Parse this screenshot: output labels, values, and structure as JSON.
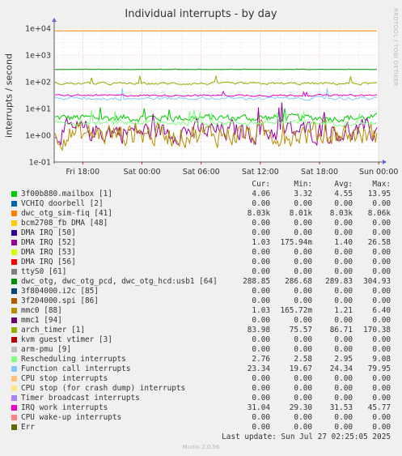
{
  "title": "Individual interrupts - by day",
  "watermark": "RRDTOOL / TOBI OETIKER",
  "footer": {
    "last_update": "Last update: Sun Jul 27 02:25:05 2025",
    "version": "Munin 2.0.56"
  },
  "legend_headers": [
    "Cur:",
    "Min:",
    "Avg:",
    "Max:"
  ],
  "chart_data": {
    "type": "line",
    "title": "Individual interrupts - by day",
    "ylabel": "interrupts / second",
    "yscale": "log",
    "ylim": [
      0.1,
      10000
    ],
    "y_ticks": [
      "1e-01",
      "1e+00",
      "1e+01",
      "1e+02",
      "1e+03",
      "1e+04"
    ],
    "x_ticks": [
      "Fri 18:00",
      "Sat 00:00",
      "Sat 06:00",
      "Sat 12:00",
      "Sat 18:00",
      "Sun 00:00"
    ],
    "x_range_hours": [
      -2.9,
      29.9
    ],
    "x_tick_hours": [
      0,
      6,
      12,
      18,
      24,
      30
    ],
    "grid": true,
    "series": [
      {
        "name": "3f00b880.mailbox [1]",
        "color": "#00cc00",
        "cur": "4.06",
        "min": "3.32",
        "avg": "4.55",
        "max": "13.95",
        "level": 4.5,
        "noise": 0.12,
        "spike": 2.4
      },
      {
        "name": "VCHIQ doorbell [2]",
        "color": "#0066b3",
        "cur": "0.00",
        "min": "0.00",
        "avg": "0.00",
        "max": "0.00"
      },
      {
        "name": "dwc_otg_sim-fiq [41]",
        "color": "#ff8000",
        "cur": "8.03k",
        "min": "8.01k",
        "avg": "8.03k",
        "max": "8.06k",
        "level": 8030,
        "noise": 0,
        "spike": 1
      },
      {
        "name": "bcm2708_fb DMA [48]",
        "color": "#ffcc00",
        "cur": "0.00",
        "min": "0.00",
        "avg": "0.00",
        "max": "0.00"
      },
      {
        "name": "DMA IRQ [50]",
        "color": "#330099",
        "cur": "0.00",
        "min": "0.00",
        "avg": "0.00",
        "max": "0.00"
      },
      {
        "name": "DMA IRQ [52]",
        "color": "#990099",
        "cur": "1.03",
        "min": "175.94m",
        "avg": "1.40",
        "max": "26.58",
        "level": 1.4,
        "noise": 0.35,
        "spike": 6
      },
      {
        "name": "DMA IRQ [53]",
        "color": "#ccff00",
        "cur": "0.00",
        "min": "0.00",
        "avg": "0.00",
        "max": "0.00"
      },
      {
        "name": "DMA IRQ [56]",
        "color": "#ff0000",
        "cur": "0.00",
        "min": "0.00",
        "avg": "0.00",
        "max": "0.00"
      },
      {
        "name": "ttyS0 [61]",
        "color": "#808080",
        "cur": "0.00",
        "min": "0.00",
        "avg": "0.00",
        "max": "0.00"
      },
      {
        "name": "dwc_otg, dwc_otg_pcd, dwc_otg_hcd:usb1 [64]",
        "color": "#008f00",
        "cur": "288.85",
        "min": "286.68",
        "avg": "289.83",
        "max": "304.93",
        "level": 289,
        "noise": 0.004,
        "spike": 1.05
      },
      {
        "name": "3f804000.i2c [85]",
        "color": "#00487d",
        "cur": "0.00",
        "min": "0.00",
        "avg": "0.00",
        "max": "0.00"
      },
      {
        "name": "3f204000.spi [86]",
        "color": "#b35a00",
        "cur": "0.00",
        "min": "0.00",
        "avg": "0.00",
        "max": "0.00"
      },
      {
        "name": "mmc0 [88]",
        "color": "#b38f00",
        "cur": "1.03",
        "min": "165.72m",
        "avg": "1.21",
        "max": "6.40",
        "level": 1.1,
        "noise": 0.38,
        "spike": 3
      },
      {
        "name": "mmc1 [94]",
        "color": "#6b006b",
        "cur": "0.00",
        "min": "0.00",
        "avg": "0.00",
        "max": "0.00"
      },
      {
        "name": "arch_timer [1]",
        "color": "#8fb300",
        "cur": "83.98",
        "min": "75.57",
        "avg": "86.71",
        "max": "170.38",
        "level": 86,
        "noise": 0.04,
        "spike": 1.8
      },
      {
        "name": "kvm guest vtimer [3]",
        "color": "#b30000",
        "cur": "0.00",
        "min": "0.00",
        "avg": "0.00",
        "max": "0.00"
      },
      {
        "name": "arm-pmu [9]",
        "color": "#bebebe",
        "cur": "0.00",
        "min": "0.00",
        "avg": "0.00",
        "max": "0.00"
      },
      {
        "name": "Rescheduling interrupts",
        "color": "#80ff80",
        "cur": "2.76",
        "min": "2.58",
        "avg": "2.95",
        "max": "9.08",
        "level": 2.9,
        "noise": 0.08,
        "spike": 2.5
      },
      {
        "name": "Function call interrupts",
        "color": "#80c9ff",
        "cur": "23.34",
        "min": "19.67",
        "avg": "24.34",
        "max": "79.95",
        "level": 24,
        "noise": 0.05,
        "spike": 2.5
      },
      {
        "name": "CPU stop interrupts",
        "color": "#ffc080",
        "cur": "0.00",
        "min": "0.00",
        "avg": "0.00",
        "max": "0.00"
      },
      {
        "name": "CPU stop (for crash dump) interrupts",
        "color": "#ffe680",
        "cur": "0.00",
        "min": "0.00",
        "avg": "0.00",
        "max": "0.00"
      },
      {
        "name": "Timer broadcast interrupts",
        "color": "#aa80ff",
        "cur": "0.00",
        "min": "0.00",
        "avg": "0.00",
        "max": "0.00"
      },
      {
        "name": "IRQ work interrupts",
        "color": "#ee00cc",
        "cur": "31.04",
        "min": "29.30",
        "avg": "31.53",
        "max": "45.77",
        "level": 31,
        "noise": 0.03,
        "spike": 1.4
      },
      {
        "name": "CPU wake-up interrupts",
        "color": "#ff8080",
        "cur": "0.00",
        "min": "0.00",
        "avg": "0.00",
        "max": "0.00"
      },
      {
        "name": "Err",
        "color": "#666600",
        "cur": "0.00",
        "min": "0.00",
        "avg": "0.00",
        "max": "0.00"
      }
    ]
  }
}
